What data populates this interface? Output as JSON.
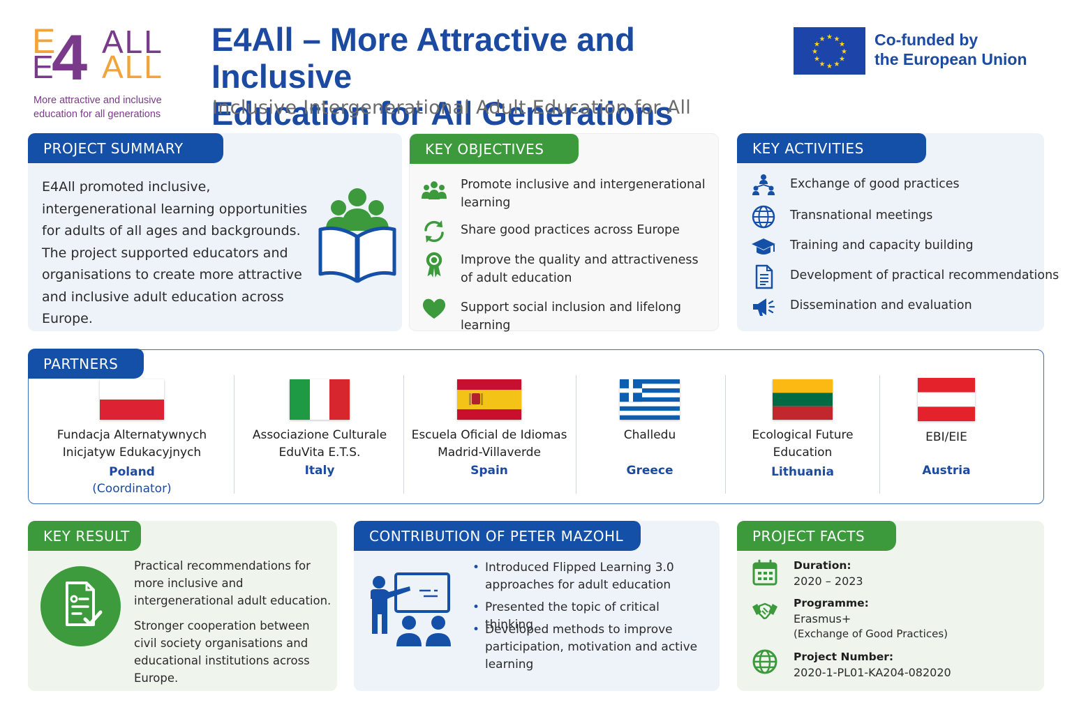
{
  "logo": {
    "line1_left": "E",
    "line1_right": "ALL",
    "line2_left": "E",
    "line2_right": "ALL",
    "digit": "4",
    "tagline_1": "More attractive and inclusive",
    "tagline_2": "education for all generations"
  },
  "header": {
    "title_line1": "E4All – More Attractive and Inclusive",
    "title_line2": "Education for All Generations",
    "subtitle": "Inclusive Intergenerational Adult Education for All"
  },
  "eu": {
    "line1": "Co-funded by",
    "line2": "the European Union"
  },
  "summary": {
    "heading": "PROJECT SUMMARY",
    "text": "E4All promoted inclusive, intergenerational learning opportunities for adults of all ages and backgrounds. The project supported educators and organisations to create more attractive and inclusive adult education across Europe."
  },
  "objectives": {
    "heading": "KEY OBJECTIVES",
    "items": [
      {
        "icon": "people-group-icon",
        "text": "Promote inclusive and intergenerational learning"
      },
      {
        "icon": "refresh-arrows-icon",
        "text": "Share good practices across Europe"
      },
      {
        "icon": "award-rosette-icon",
        "text": "Improve the quality and attractiveness of adult education"
      },
      {
        "icon": "heart-icon",
        "text": "Support social inclusion and lifelong learning"
      }
    ]
  },
  "activities": {
    "heading": "KEY ACTIVITIES",
    "items": [
      {
        "icon": "network-people-icon",
        "text": "Exchange of good practices"
      },
      {
        "icon": "globe-icon",
        "text": "Transnational meetings"
      },
      {
        "icon": "graduation-cap-icon",
        "text": "Training and capacity building"
      },
      {
        "icon": "document-icon",
        "text": "Development of practical recommendations"
      },
      {
        "icon": "megaphone-icon",
        "text": "Dissemination and evaluation"
      }
    ]
  },
  "partners": {
    "heading": "PARTNERS",
    "items": [
      {
        "flag": "poland-flag-icon",
        "name_1": "Fundacja Alternatywnych",
        "name_2": "Inicjatyw Edukacyjnych",
        "country": "Poland",
        "role": "(Coordinator)"
      },
      {
        "flag": "italy-flag-icon",
        "name_1": "Associazione Culturale",
        "name_2": "EduVita E.T.S.",
        "country": "Italy",
        "role": ""
      },
      {
        "flag": "spain-flag-icon",
        "name_1": "Escuela Oficial de Idiomas",
        "name_2": "Madrid-Villaverde",
        "country": "Spain",
        "role": ""
      },
      {
        "flag": "greece-flag-icon",
        "name_1": "Challedu",
        "name_2": "",
        "country": "Greece",
        "role": ""
      },
      {
        "flag": "lithuania-flag-icon",
        "name_1": "Ecological Future",
        "name_2": "Education",
        "country": "Lithuania",
        "role": ""
      },
      {
        "flag": "austria-flag-icon",
        "name_1": "EBI/EIE",
        "name_2": "",
        "country": "Austria",
        "role": ""
      }
    ]
  },
  "result": {
    "heading": "KEY RESULT",
    "p1": "Practical recommendations for more inclusive and intergenerational adult education.",
    "p2": "Stronger cooperation between civil society organisations and educational institutions across Europe."
  },
  "contribution": {
    "heading": "CONTRIBUTION OF PETER MAZOHL",
    "items": [
      "Introduced Flipped Learning 3.0 approaches for adult education",
      "Presented the topic of critical thinking",
      "Developed methods to improve participation, motivation and active learning"
    ]
  },
  "facts": {
    "heading": "PROJECT FACTS",
    "duration_label": "Duration:",
    "duration_value": "2020 – 2023",
    "programme_label": "Programme:",
    "programme_value": "Erasmus+",
    "programme_note": "(Exchange of Good Practices)",
    "number_label": "Project Number:",
    "number_value": "2020-1-PL01-KA204-082020"
  },
  "colors": {
    "primary_blue": "#1550a8",
    "primary_green": "#3c9a3c",
    "logo_orange": "#f2a33a",
    "logo_purple": "#7a3a8a"
  }
}
